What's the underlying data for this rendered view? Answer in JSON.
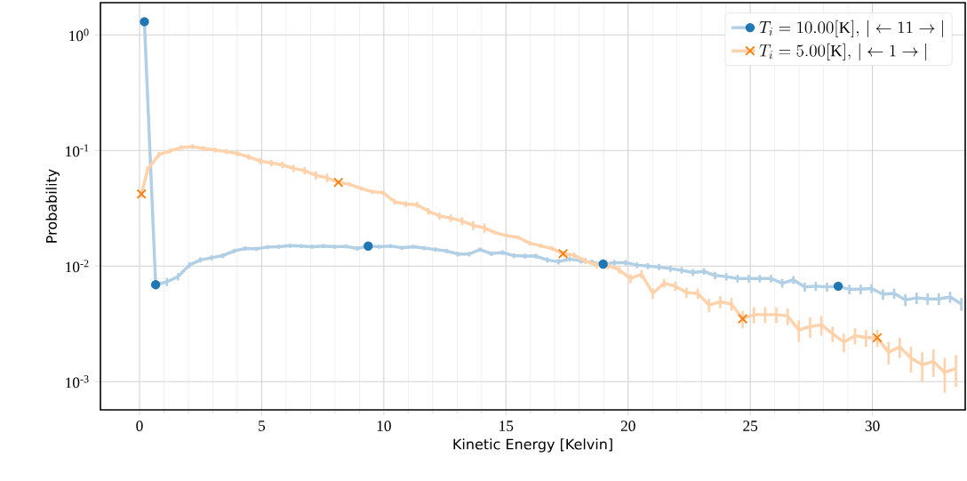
{
  "chart_data": {
    "type": "line",
    "xlabel": "Kinetic Energy [Kelvin]",
    "ylabel": "Probability",
    "log": "y",
    "grid": true,
    "legend": "top right",
    "xlim": [
      -1.6,
      33.8
    ],
    "xticks": [
      0,
      5,
      10,
      15,
      20,
      25,
      30
    ],
    "ylim": [
      0.00057,
      1.9
    ],
    "yticks": [
      {
        "value": 1,
        "label": "10$^{0}$"
      },
      {
        "value": 0.1,
        "label": "10$^{-1}$"
      },
      {
        "value": 0.01,
        "label": "10$^{-2}$"
      },
      {
        "value": 0.001,
        "label": "10$^{-3}$"
      }
    ],
    "series": [
      {
        "x": [
          0.2,
          0.66,
          9.36,
          18.98,
          28.6
        ],
        "values": [
          1.3,
          0.0069,
          0.0149,
          0.0104,
          0.0067
        ],
        "type": "scatter",
        "color": "#1f77b4",
        "marker": "circle"
      },
      {
        "x": [
          0.08,
          8.14,
          17.34,
          24.69,
          30.2
        ],
        "values": [
          0.042,
          0.053,
          0.0128,
          0.0035,
          0.0024
        ],
        "type": "scatter",
        "color": "#ff7f0e",
        "marker": "cross"
      },
      {
        "name": "T_i = 10.00[\\mathrm{K}],\\, |\\leftarrow 11 \\rightarrow|",
        "color": "#b1cfe5",
        "x": [
          0.2,
          0.66,
          1.12,
          1.58,
          2.04,
          2.49,
          2.95,
          3.41,
          3.87,
          4.33,
          4.78,
          5.24,
          5.7,
          6.16,
          6.62,
          7.07,
          7.53,
          7.99,
          8.45,
          8.91,
          9.36,
          9.82,
          10.28,
          10.74,
          11.2,
          11.65,
          12.11,
          12.57,
          13.03,
          13.49,
          13.94,
          14.4,
          14.86,
          15.32,
          15.78,
          16.23,
          16.69,
          17.15,
          17.61,
          18.07,
          18.52,
          18.98,
          19.44,
          19.9,
          20.36,
          20.81,
          21.27,
          21.73,
          22.19,
          22.65,
          23.1,
          23.56,
          24.02,
          24.48,
          24.94,
          25.39,
          25.85,
          26.31,
          26.77,
          27.23,
          27.68,
          28.14,
          28.6,
          29.06,
          29.52,
          29.97,
          30.43,
          30.89,
          31.35,
          31.81,
          32.26,
          32.72,
          33.18,
          33.64
        ],
        "values": [
          1.3,
          0.0069,
          0.0073,
          0.0081,
          0.0102,
          0.0113,
          0.0118,
          0.0123,
          0.0135,
          0.0142,
          0.0141,
          0.0146,
          0.0147,
          0.015,
          0.0149,
          0.0147,
          0.0149,
          0.0147,
          0.0148,
          0.0142,
          0.0149,
          0.0147,
          0.0149,
          0.0144,
          0.0147,
          0.0143,
          0.0139,
          0.0135,
          0.0127,
          0.0127,
          0.0139,
          0.0128,
          0.0131,
          0.0123,
          0.0122,
          0.0122,
          0.0113,
          0.0109,
          0.0115,
          0.0111,
          0.0108,
          0.0104,
          0.0107,
          0.0107,
          0.0102,
          0.01,
          0.0098,
          0.0095,
          0.0092,
          0.0088,
          0.009,
          0.0083,
          0.0081,
          0.0078,
          0.0078,
          0.0078,
          0.0078,
          0.0071,
          0.0076,
          0.0066,
          0.0067,
          0.0066,
          0.0067,
          0.0063,
          0.0063,
          0.0064,
          0.0057,
          0.0058,
          0.0051,
          0.0053,
          0.0052,
          0.0052,
          0.0054,
          0.0047
        ],
        "errors": [
          null,
          0.0006,
          0.0006,
          0.0006,
          0.0006,
          0.0006,
          0.0006,
          0.0006,
          0.0006,
          0.0006,
          0.0006,
          0.0006,
          0.0006,
          0.0006,
          0.0006,
          0.0006,
          0.0006,
          0.0006,
          0.0006,
          0.0006,
          0.0006,
          0.0006,
          0.0006,
          0.0006,
          0.0006,
          0.0006,
          0.0006,
          0.0006,
          0.0006,
          0.0006,
          0.0006,
          0.0006,
          0.0006,
          0.0006,
          0.0006,
          0.0006,
          0.0006,
          0.0006,
          0.0006,
          0.0006,
          0.0006,
          0.0006,
          0.0006,
          0.0006,
          0.0006,
          0.0006,
          0.0006,
          0.0006,
          0.0006,
          0.0006,
          0.0006,
          0.0006,
          0.0006,
          0.0006,
          0.0006,
          0.0006,
          0.0006,
          0.0006,
          0.0006,
          0.0006,
          0.0006,
          0.0006,
          0.0006,
          0.0006,
          0.0006,
          0.0006,
          0.0006,
          0.0006,
          0.0006,
          0.0006,
          0.0006,
          0.0006,
          0.0006,
          0.0006
        ]
      },
      {
        "name": "T_i = 5.00[\\mathrm{K}],\\, |\\leftarrow 1 \\rightarrow|",
        "color": "#ffd2ab",
        "x": [
          0.08,
          0.33,
          0.79,
          1.25,
          1.71,
          2.17,
          2.63,
          3.09,
          3.55,
          4.01,
          4.47,
          4.93,
          5.39,
          5.85,
          6.3,
          6.76,
          7.22,
          7.68,
          8.14,
          8.6,
          9.06,
          9.52,
          9.98,
          10.44,
          10.9,
          11.36,
          11.82,
          12.28,
          12.74,
          13.2,
          13.66,
          14.12,
          14.58,
          15.04,
          15.5,
          15.96,
          16.42,
          16.88,
          17.34,
          17.79,
          18.25,
          18.71,
          19.17,
          19.63,
          20.09,
          20.55,
          21.01,
          21.47,
          21.93,
          22.39,
          22.85,
          23.31,
          23.77,
          24.23,
          24.69,
          25.15,
          25.61,
          26.07,
          26.53,
          26.99,
          27.45,
          27.91,
          28.37,
          28.83,
          29.29,
          29.74,
          30.2,
          30.66,
          31.12,
          31.58,
          32.04,
          32.5,
          32.96,
          33.42
        ],
        "values": [
          0.042,
          0.068,
          0.092,
          0.099,
          0.106,
          0.108,
          0.104,
          0.101,
          0.098,
          0.094,
          0.088,
          0.081,
          0.078,
          0.075,
          0.07,
          0.067,
          0.061,
          0.058,
          0.053,
          0.051,
          0.047,
          0.044,
          0.043,
          0.036,
          0.0344,
          0.034,
          0.0298,
          0.0271,
          0.026,
          0.0245,
          0.0225,
          0.0214,
          0.0194,
          0.0183,
          0.0177,
          0.0158,
          0.015,
          0.0142,
          0.0128,
          0.0124,
          0.0111,
          0.0102,
          0.0101,
          0.0093,
          0.0078,
          0.0085,
          0.0058,
          0.0071,
          0.0067,
          0.0059,
          0.0058,
          0.0046,
          0.0049,
          0.0047,
          0.0035,
          0.0038,
          0.0038,
          0.0038,
          0.0037,
          0.0028,
          0.003,
          0.0031,
          0.0026,
          0.0022,
          0.0025,
          0.0024,
          0.0024,
          0.0018,
          0.002,
          0.0016,
          0.0014,
          0.0015,
          0.0012,
          0.0013
        ],
        "errors": [
          0.003,
          0.005,
          0.005,
          0.005,
          0.005,
          0.005,
          0.005,
          0.005,
          0.005,
          0.005,
          0.005,
          0.005,
          0.005,
          0.005,
          0.005,
          0.005,
          0.005,
          0.005,
          0.002,
          0.002,
          0.002,
          0.002,
          0.002,
          0.002,
          0.002,
          0.002,
          0.002,
          0.002,
          0.002,
          0.002,
          0.002,
          0.002,
          0.0007,
          0.0007,
          0.0007,
          0.0007,
          0.0007,
          0.0007,
          0.0007,
          0.0007,
          0.0007,
          0.0007,
          0.0007,
          0.0007,
          0.0007,
          0.0007,
          0.0006,
          0.0006,
          0.0006,
          0.0006,
          0.0006,
          0.0006,
          0.0006,
          0.0006,
          0.0006,
          0.0006,
          0.0006,
          0.0006,
          0.0006,
          0.0006,
          0.0006,
          0.0006,
          0.0004,
          0.0004,
          0.0004,
          0.0004,
          0.0004,
          0.0004,
          0.0004,
          0.0004,
          0.0004,
          0.0004,
          0.0004,
          0.0004
        ]
      }
    ]
  }
}
